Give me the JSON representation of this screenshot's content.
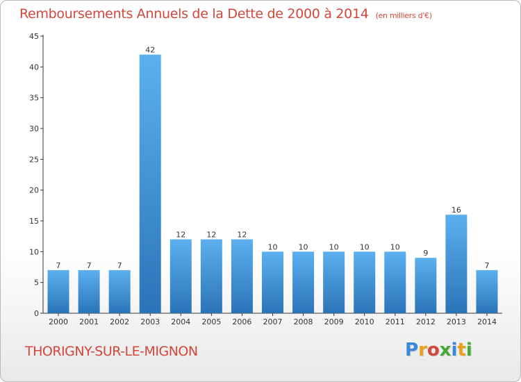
{
  "chart_data": {
    "type": "bar",
    "title": "Remboursements Annuels de la Dette de 2000 à 2014",
    "subtitle": "(en milliers d'€)",
    "categories": [
      "2000",
      "2001",
      "2002",
      "2003",
      "2004",
      "2005",
      "2006",
      "2007",
      "2008",
      "2009",
      "2010",
      "2011",
      "2012",
      "2013",
      "2014"
    ],
    "values": [
      7,
      7,
      7,
      42,
      12,
      12,
      12,
      10,
      10,
      10,
      10,
      10,
      9,
      16,
      7
    ],
    "ylim": [
      0,
      45
    ],
    "yticks": [
      0,
      5,
      10,
      15,
      20,
      25,
      30,
      35,
      40,
      45
    ],
    "grid": false,
    "bar_color": "#3a8fd8"
  },
  "footer": {
    "town": "THORIGNY-SUR-LE-MIGNON",
    "logo_text": "Proxiti",
    "logo_colors": [
      "#3a86d8",
      "#e9a11b",
      "#d2473b",
      "#49a83a",
      "#3a86d8",
      "#e9a11b",
      "#49a83a"
    ]
  },
  "colors": {
    "title": "#d2473b",
    "axis": "#333333"
  }
}
